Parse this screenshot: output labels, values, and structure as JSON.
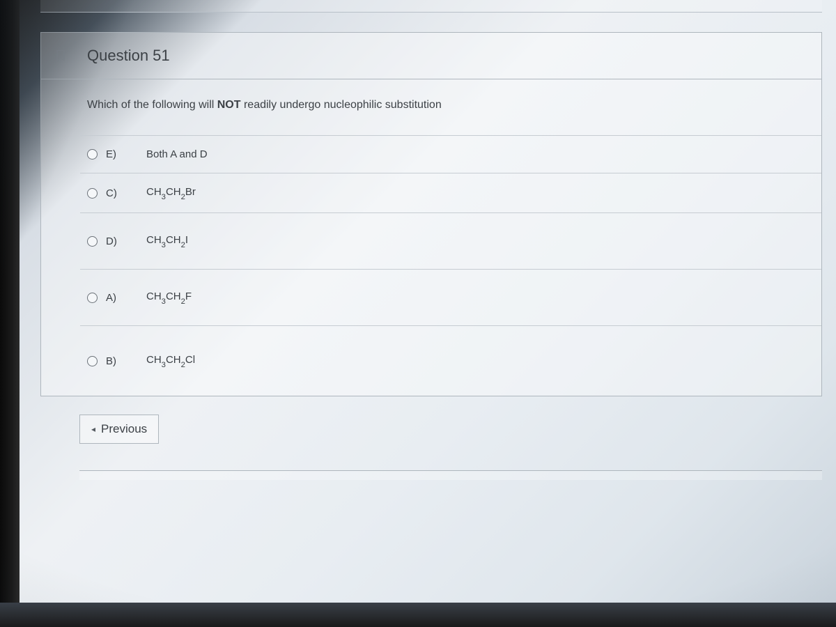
{
  "question": {
    "title": "Question 51",
    "prompt_pre": "Which of the following will ",
    "prompt_bold": "NOT",
    "prompt_post": " readily undergo nucleophilic substitution",
    "choices": [
      {
        "letter": "E)",
        "html": "Both A and D",
        "height": "normal"
      },
      {
        "letter": "C)",
        "html": "CH<sub>3</sub>CH<sub>2</sub>Br",
        "height": "normal"
      },
      {
        "letter": "D)",
        "html": "CH<sub>3</sub>CH<sub>2</sub>I",
        "height": "tall"
      },
      {
        "letter": "A)",
        "html": "CH<sub>3</sub>CH<sub>2</sub>F",
        "height": "tall"
      },
      {
        "letter": "B)",
        "html": "CH<sub>3</sub>CH<sub>2</sub>Cl",
        "height": "taller"
      }
    ]
  },
  "nav": {
    "previous_label": "Previous"
  },
  "colors": {
    "border": "#aeb6bd",
    "text": "#3c4146",
    "radio_border": "#6b7178"
  }
}
